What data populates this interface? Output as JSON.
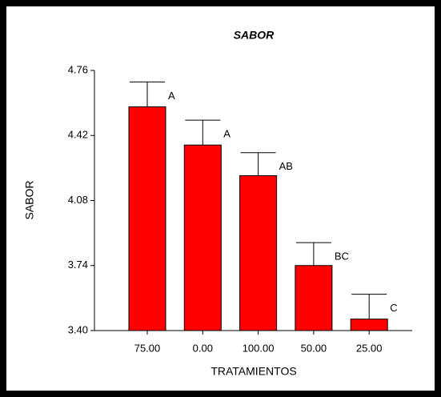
{
  "chart_data": {
    "type": "bar",
    "title": "SABOR",
    "x_label": "TRATAMIENTOS",
    "y_label": "SABOR",
    "categories": [
      "75.00",
      "0.00",
      "100.00",
      "50.00",
      "25.00"
    ],
    "values": [
      4.57,
      4.37,
      4.21,
      3.74,
      3.46
    ],
    "errors": [
      0.13,
      0.13,
      0.12,
      0.12,
      0.13
    ],
    "letters": [
      "A",
      "A",
      "AB",
      "BC",
      "C"
    ],
    "color": "#ff0000",
    "ylim": [
      3.4,
      4.76
    ],
    "yticks": [
      {
        "value": 3.4,
        "label": "3.40"
      },
      3.74,
      4.08,
      4.42,
      4.76
    ]
  }
}
